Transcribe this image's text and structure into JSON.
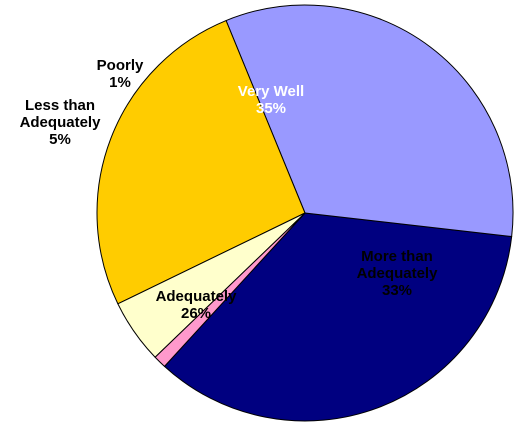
{
  "chart_data": {
    "type": "pie",
    "slices": [
      {
        "label_lines": [
          "Very Well"
        ],
        "value": 35,
        "value_text": "35%",
        "color": "#000080",
        "label_color": "#ffffff"
      },
      {
        "label_lines": [
          "More than",
          "Adequately"
        ],
        "value": 33,
        "value_text": "33%",
        "color": "#9999ff",
        "label_color": "#000000"
      },
      {
        "label_lines": [
          "Adequately"
        ],
        "value": 26,
        "value_text": "26%",
        "color": "#ffcc00",
        "label_color": "#000000"
      },
      {
        "label_lines": [
          "Less than",
          "Adequately"
        ],
        "value": 5,
        "value_text": "5%",
        "color": "#ffffcc",
        "label_color": "#000000"
      },
      {
        "label_lines": [
          "Poorly"
        ],
        "value": 1,
        "value_text": "1%",
        "color": "#ff99cc",
        "label_color": "#000000"
      }
    ],
    "legend": "none"
  }
}
